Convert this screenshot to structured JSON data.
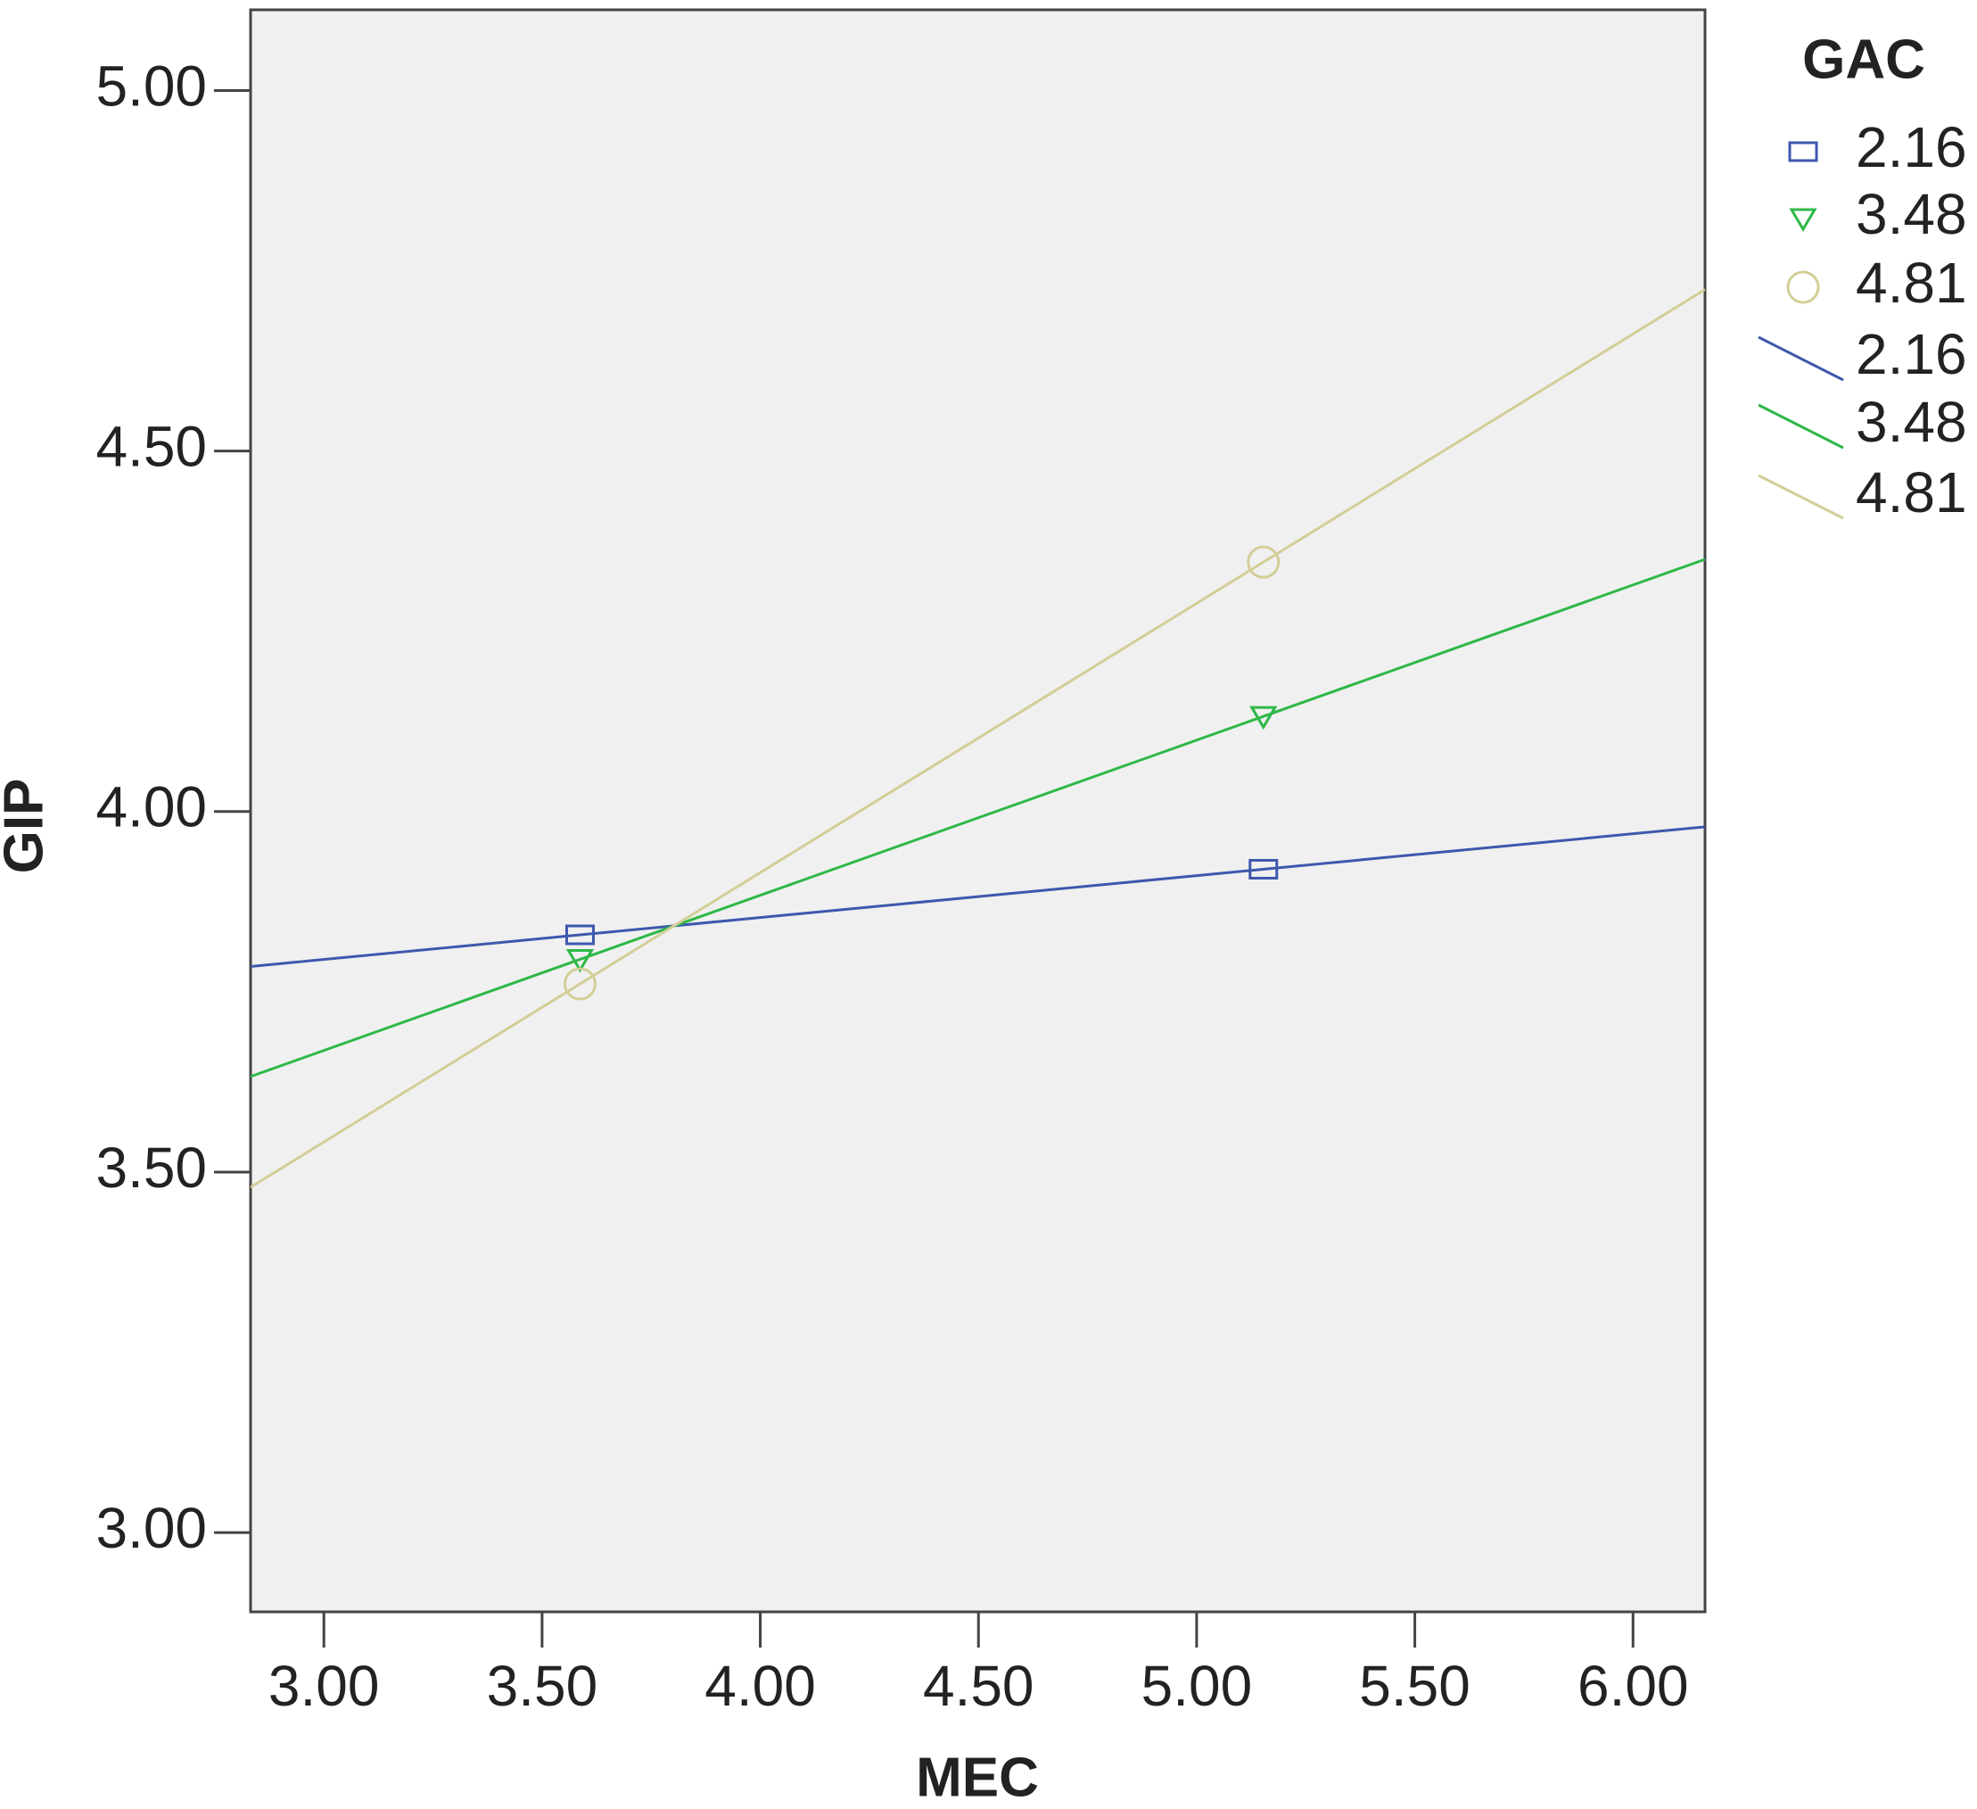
{
  "chart_data": {
    "type": "scatter",
    "x_label": "MEC",
    "y_label": "GIP",
    "legend_title": "GAC",
    "x": [
      3.587,
      5.153
    ],
    "series": [
      {
        "name": "2.16",
        "color": "#3e58ac",
        "marker": "square",
        "values": [
          3.829,
          3.92
        ]
      },
      {
        "name": "3.48",
        "color": "#2eb848",
        "marker": "triangle-down",
        "values": [
          3.795,
          4.132
        ]
      },
      {
        "name": "4.81",
        "color": "#d3ce97",
        "marker": "circle",
        "values": [
          3.761,
          4.346
        ]
      }
    ],
    "fit_lines": [
      {
        "name": "2.16",
        "color": "#3e58ac"
      },
      {
        "name": "3.48",
        "color": "#2eb848"
      },
      {
        "name": "4.81",
        "color": "#d3ce97"
      }
    ],
    "xlim": [
      2.832,
      6.165
    ],
    "ylim": [
      2.89,
      5.112
    ],
    "xticks": [
      {
        "value": 3,
        "label": "3.00"
      },
      {
        "value": 3.5,
        "label": "3.50"
      },
      {
        "value": 4,
        "label": "4.00"
      },
      {
        "value": 4.5,
        "label": "4.50"
      },
      {
        "value": 5,
        "label": "5.00"
      },
      {
        "value": 5.5,
        "label": "5.50"
      },
      {
        "value": 6,
        "label": "6.00"
      }
    ],
    "yticks": [
      {
        "value": 3,
        "label": "3.00"
      },
      {
        "value": 3.5,
        "label": "3.50"
      },
      {
        "value": 4,
        "label": "4.00"
      },
      {
        "value": 4.5,
        "label": "4.50"
      },
      {
        "value": 5,
        "label": "5.00"
      }
    ]
  }
}
